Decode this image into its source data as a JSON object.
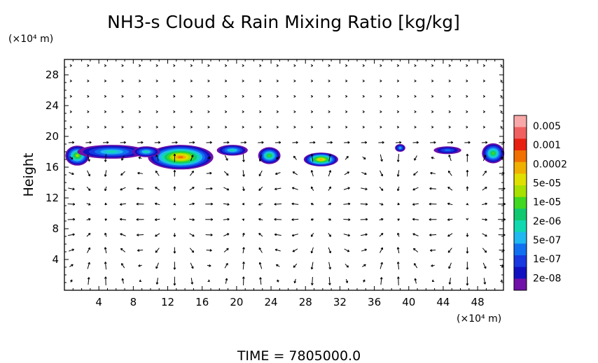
{
  "chart_data": {
    "type": "heatmap",
    "title": "NH3-s Cloud & Rain Mixing Ratio [kg/kg]",
    "ylabel": "Height",
    "xunit": "(×10⁴ m)",
    "yunit": "(×10⁴ m)",
    "xlim": [
      0,
      51
    ],
    "ylim": [
      0,
      30
    ],
    "x_ticks": [
      4,
      8,
      12,
      16,
      20,
      24,
      28,
      32,
      36,
      40,
      44,
      48
    ],
    "y_ticks": [
      4,
      8,
      12,
      16,
      20,
      24,
      28
    ],
    "grid": false,
    "legend_placement": "right",
    "colorbar": {
      "labels": [
        "0.005",
        "0.001",
        "0.0002",
        "5e-05",
        "1e-05",
        "2e-06",
        "5e-07",
        "1e-07",
        "2e-08"
      ],
      "colors": [
        "#f8a8a8",
        "#f06060",
        "#e82010",
        "#f07000",
        "#f0b000",
        "#e0e000",
        "#a8e000",
        "#40d820",
        "#10c870",
        "#10d8b0",
        "#20b8f0",
        "#1070f0",
        "#1838e0",
        "#1010c0",
        "#7010a8"
      ]
    },
    "cloud_regions": [
      {
        "x_center": 1.5,
        "z_center": 17.5,
        "x_halfwidth": 1.4,
        "z_halfheight": 1.3,
        "peak_level": 8
      },
      {
        "x_center": 5.5,
        "z_center": 18.0,
        "x_halfwidth": 4.0,
        "z_halfheight": 0.9,
        "peak_level": 5
      },
      {
        "x_center": 13.5,
        "z_center": 17.3,
        "x_halfwidth": 3.8,
        "z_halfheight": 1.6,
        "peak_level": 11
      },
      {
        "x_center": 9.5,
        "z_center": 18.0,
        "x_halfwidth": 1.6,
        "z_halfheight": 0.7,
        "peak_level": 5
      },
      {
        "x_center": 19.5,
        "z_center": 18.2,
        "x_halfwidth": 1.8,
        "z_halfheight": 0.7,
        "peak_level": 5
      },
      {
        "x_center": 23.8,
        "z_center": 17.5,
        "x_halfwidth": 1.3,
        "z_halfheight": 1.1,
        "peak_level": 7
      },
      {
        "x_center": 29.8,
        "z_center": 17.0,
        "x_halfwidth": 2.0,
        "z_halfheight": 0.9,
        "peak_level": 10
      },
      {
        "x_center": 39.0,
        "z_center": 18.5,
        "x_halfwidth": 0.6,
        "z_halfheight": 0.5,
        "peak_level": 4
      },
      {
        "x_center": 44.5,
        "z_center": 18.2,
        "x_halfwidth": 1.6,
        "z_halfheight": 0.5,
        "peak_level": 3
      },
      {
        "x_center": 49.8,
        "z_center": 17.8,
        "x_halfwidth": 1.3,
        "z_halfheight": 1.3,
        "peak_level": 7
      }
    ]
  },
  "footer": {
    "time_text": "TIME  =  7805000.0"
  }
}
